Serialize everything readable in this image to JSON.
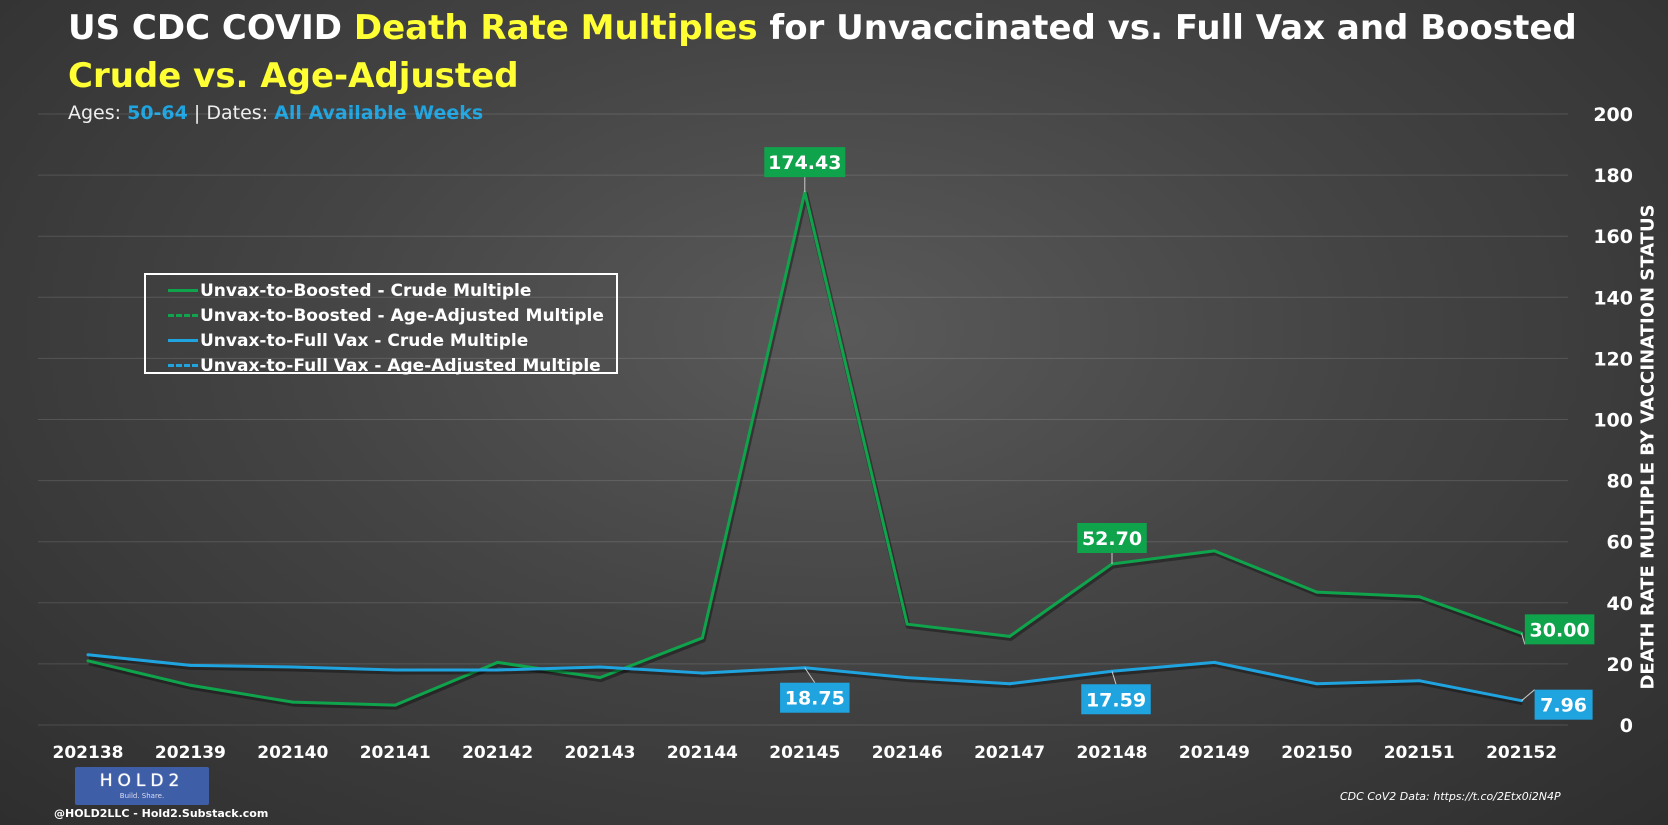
{
  "header": {
    "title_part1": "US CDC COVID ",
    "title_highlight": "Death Rate Multiples",
    "title_part2": " for Unvaccinated vs. Full Vax and Boosted",
    "title_line2": "Crude vs. Age-Adjusted",
    "ages_label": "Ages: ",
    "ages_value": "50-64",
    "separator": " | ",
    "dates_label": "Dates: ",
    "dates_value": "All Available Weeks"
  },
  "colors": {
    "green": "#0fa34c",
    "blue": "#1fa4e0",
    "highlight": "#ffff33"
  },
  "legend": {
    "items": [
      {
        "label": "Unvax-to-Boosted - Crude Multiple",
        "color": "#0fa34c",
        "dashed": false
      },
      {
        "label": "Unvax-to-Boosted - Age-Adjusted Multiple",
        "color": "#0fa34c",
        "dashed": true
      },
      {
        "label": "Unvax-to-Full Vax - Crude Multiple",
        "color": "#1fa4e0",
        "dashed": false
      },
      {
        "label": "Unvax-to-Full Vax - Age-Adjusted Multiple",
        "color": "#1fa4e0",
        "dashed": true
      }
    ]
  },
  "footer": {
    "logo_text": "HOLD2",
    "logo_tagline": "Build. Share.",
    "handle": "@HOLD2LLC - Hold2.Substack.com",
    "source": "CDC CoV2 Data: https://t.co/2Etx0i2N4P"
  },
  "chart_data": {
    "type": "line",
    "title": "US CDC COVID Death Rate Multiples for Unvaccinated vs. Full Vax and Boosted",
    "ylabel": "DEATH RATE MULTIPLE BY VACCINATION STATUS",
    "y_axis_side": "right",
    "ylim": [
      0,
      200
    ],
    "yticks": [
      0,
      20,
      40,
      60,
      80,
      100,
      120,
      140,
      160,
      180,
      200
    ],
    "grid": true,
    "legend_placement": "upper-left",
    "categories": [
      "202138",
      "202139",
      "202140",
      "202141",
      "202142",
      "202143",
      "202144",
      "202145",
      "202146",
      "202147",
      "202148",
      "202149",
      "202150",
      "202151",
      "202152"
    ],
    "series": [
      {
        "name": "Unvax-to-Boosted - Crude Multiple",
        "color": "#0fa34c",
        "values": [
          21,
          13,
          7.5,
          6.5,
          20.5,
          15.5,
          28.5,
          174.43,
          33,
          29,
          52.7,
          57,
          43.5,
          42,
          30.0
        ],
        "data_labels": [
          {
            "index": 7,
            "text": "174.43"
          },
          {
            "index": 10,
            "text": "52.70"
          },
          {
            "index": 14,
            "text": "30.00"
          }
        ]
      },
      {
        "name": "Unvax-to-Full Vax - Crude Multiple",
        "color": "#1fa4e0",
        "values": [
          23,
          19.5,
          19,
          18,
          18,
          19,
          17,
          18.75,
          15.5,
          13.5,
          17.59,
          20.5,
          13.5,
          14.5,
          7.96
        ],
        "data_labels": [
          {
            "index": 7,
            "text": "18.75"
          },
          {
            "index": 10,
            "text": "17.59"
          },
          {
            "index": 14,
            "text": "7.96"
          }
        ]
      }
    ]
  }
}
